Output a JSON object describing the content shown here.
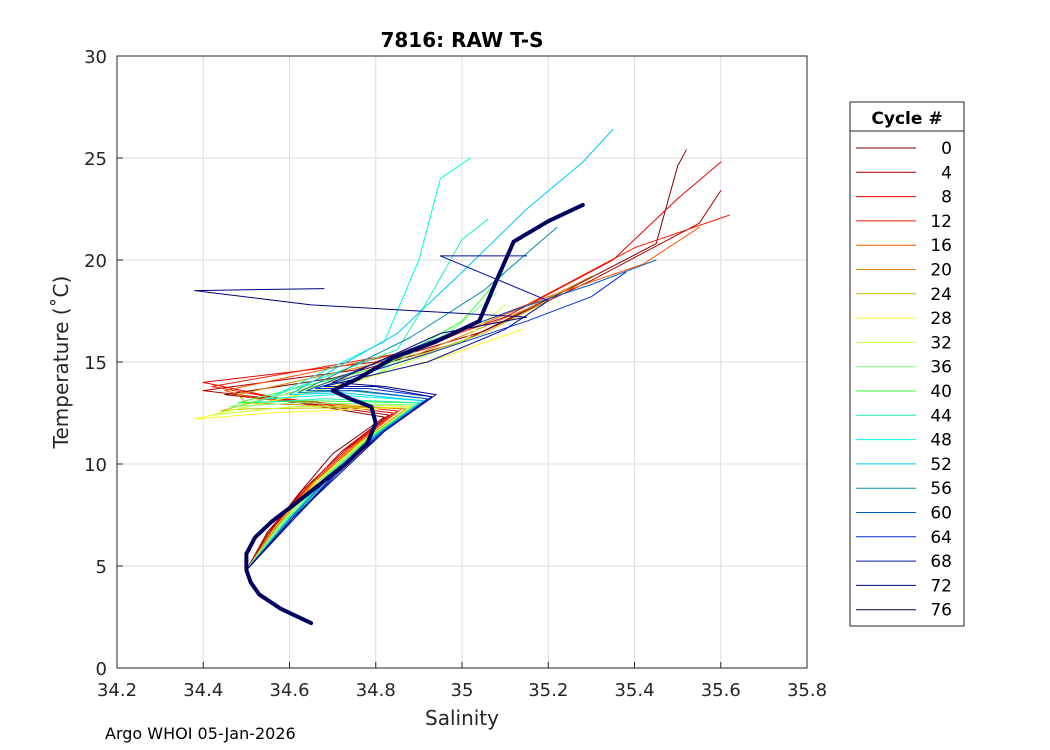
{
  "chart_data": {
    "type": "line",
    "title": "7816: RAW T-S",
    "xlabel": "Salinity",
    "ylabel": "Temperature (˚C)",
    "xlim": [
      34.2,
      35.8
    ],
    "ylim": [
      0,
      30
    ],
    "xticks": [
      "34.2",
      "34.4",
      "34.6",
      "34.8",
      "35",
      "35.2",
      "35.4",
      "35.6",
      "35.8"
    ],
    "xtick_values": [
      34.2,
      34.4,
      34.6,
      34.8,
      35.0,
      35.2,
      35.4,
      35.6,
      35.8
    ],
    "yticks": [
      "0",
      "5",
      "10",
      "15",
      "20",
      "25",
      "30"
    ],
    "ytick_values": [
      0,
      5,
      10,
      15,
      20,
      25,
      30
    ],
    "grid": true,
    "legend": {
      "title": "Cycle #",
      "placement": "right-outside",
      "entries": [
        {
          "label": "0",
          "color": "#7f0000"
        },
        {
          "label": "4",
          "color": "#b20000"
        },
        {
          "label": "8",
          "color": "#e00000"
        },
        {
          "label": "12",
          "color": "#ff1a00"
        },
        {
          "label": "16",
          "color": "#ff5500"
        },
        {
          "label": "20",
          "color": "#d98a00"
        },
        {
          "label": "24",
          "color": "#c8c000"
        },
        {
          "label": "28",
          "color": "#ffff20"
        },
        {
          "label": "32",
          "color": "#c8ff38"
        },
        {
          "label": "36",
          "color": "#7fff7f"
        },
        {
          "label": "40",
          "color": "#38ff38"
        },
        {
          "label": "44",
          "color": "#20f0b0"
        },
        {
          "label": "48",
          "color": "#00ffe0"
        },
        {
          "label": "52",
          "color": "#00c8ff"
        },
        {
          "label": "56",
          "color": "#0090a8"
        },
        {
          "label": "60",
          "color": "#0060c8"
        },
        {
          "label": "64",
          "color": "#0030e0"
        },
        {
          "label": "68",
          "color": "#0010a0"
        },
        {
          "label": "72",
          "color": "#00007f"
        },
        {
          "label": "76",
          "color": "#000060"
        }
      ]
    },
    "series": [
      {
        "name": "0",
        "color": "#7f0000",
        "points": [
          [
            34.5,
            4.8
          ],
          [
            34.55,
            6.6
          ],
          [
            34.62,
            8.5
          ],
          [
            34.7,
            10.5
          ],
          [
            34.82,
            12.3
          ],
          [
            34.62,
            13.0
          ],
          [
            34.45,
            13.4
          ],
          [
            34.7,
            14.2
          ],
          [
            35.0,
            16.0
          ],
          [
            35.25,
            18.6
          ],
          [
            35.45,
            20.8
          ],
          [
            35.5,
            24.6
          ],
          [
            35.52,
            25.4
          ]
        ]
      },
      {
        "name": "4",
        "color": "#b20000",
        "points": [
          [
            34.5,
            4.8
          ],
          [
            34.55,
            6.7
          ],
          [
            34.63,
            8.6
          ],
          [
            34.72,
            10.6
          ],
          [
            34.83,
            12.4
          ],
          [
            34.6,
            13.1
          ],
          [
            34.4,
            13.6
          ],
          [
            34.75,
            14.6
          ],
          [
            35.05,
            16.5
          ],
          [
            35.3,
            19.0
          ],
          [
            35.55,
            21.8
          ],
          [
            35.6,
            23.4
          ]
        ]
      },
      {
        "name": "8",
        "color": "#e00000",
        "points": [
          [
            34.5,
            4.8
          ],
          [
            34.56,
            6.8
          ],
          [
            34.63,
            8.7
          ],
          [
            34.73,
            10.7
          ],
          [
            34.84,
            12.5
          ],
          [
            34.58,
            13.2
          ],
          [
            34.4,
            14.0
          ],
          [
            34.8,
            15.0
          ],
          [
            35.1,
            17.2
          ],
          [
            35.35,
            20.0
          ],
          [
            35.5,
            23.0
          ],
          [
            35.6,
            24.8
          ]
        ]
      },
      {
        "name": "12",
        "color": "#ff1a00",
        "points": [
          [
            34.5,
            4.8
          ],
          [
            34.56,
            6.8
          ],
          [
            34.64,
            8.8
          ],
          [
            34.74,
            10.8
          ],
          [
            34.85,
            12.6
          ],
          [
            34.55,
            13.3
          ],
          [
            34.42,
            13.8
          ],
          [
            34.85,
            15.4
          ],
          [
            35.15,
            17.8
          ],
          [
            35.4,
            20.6
          ],
          [
            35.62,
            22.2
          ]
        ]
      },
      {
        "name": "16",
        "color": "#ff5500",
        "points": [
          [
            34.5,
            4.8
          ],
          [
            34.57,
            6.9
          ],
          [
            34.65,
            8.9
          ],
          [
            34.75,
            10.9
          ],
          [
            34.86,
            12.7
          ],
          [
            34.52,
            13.2
          ],
          [
            34.45,
            13.6
          ],
          [
            34.9,
            15.6
          ],
          [
            35.2,
            18.2
          ],
          [
            35.42,
            19.8
          ],
          [
            35.55,
            21.6
          ]
        ]
      },
      {
        "name": "20",
        "color": "#d98a00",
        "points": [
          [
            34.5,
            4.8
          ],
          [
            34.57,
            6.9
          ],
          [
            34.65,
            9.0
          ],
          [
            34.76,
            11.0
          ],
          [
            34.87,
            12.7
          ],
          [
            34.5,
            13.0
          ],
          [
            34.48,
            13.4
          ],
          [
            34.9,
            15.4
          ],
          [
            35.15,
            17.6
          ],
          [
            35.3,
            19.2
          ]
        ]
      },
      {
        "name": "24",
        "color": "#c8c000",
        "points": [
          [
            34.5,
            4.8
          ],
          [
            34.57,
            7.0
          ],
          [
            34.66,
            9.0
          ],
          [
            34.76,
            11.0
          ],
          [
            34.88,
            12.8
          ],
          [
            34.5,
            12.7
          ],
          [
            34.44,
            12.6
          ],
          [
            34.8,
            14.6
          ],
          [
            35.05,
            16.4
          ],
          [
            35.2,
            18.0
          ]
        ]
      },
      {
        "name": "28",
        "color": "#ffff20",
        "points": [
          [
            34.5,
            4.8
          ],
          [
            34.58,
            7.0
          ],
          [
            34.66,
            9.1
          ],
          [
            34.77,
            11.1
          ],
          [
            34.88,
            12.8
          ],
          [
            34.55,
            12.5
          ],
          [
            34.38,
            12.2
          ],
          [
            34.7,
            13.8
          ],
          [
            34.95,
            15.2
          ],
          [
            35.14,
            16.6
          ]
        ]
      },
      {
        "name": "32",
        "color": "#c8ff38",
        "points": [
          [
            34.5,
            4.8
          ],
          [
            34.58,
            7.0
          ],
          [
            34.67,
            9.1
          ],
          [
            34.77,
            11.1
          ],
          [
            34.89,
            12.9
          ],
          [
            34.6,
            12.8
          ],
          [
            34.42,
            12.4
          ],
          [
            34.75,
            14.0
          ],
          [
            35.0,
            16.0
          ],
          [
            35.1,
            17.8
          ]
        ]
      },
      {
        "name": "36",
        "color": "#7fff7f",
        "points": [
          [
            34.5,
            4.8
          ],
          [
            34.58,
            7.1
          ],
          [
            34.67,
            9.2
          ],
          [
            34.78,
            11.2
          ],
          [
            34.89,
            12.9
          ],
          [
            34.62,
            13.0
          ],
          [
            34.46,
            12.8
          ],
          [
            34.8,
            14.4
          ],
          [
            34.98,
            16.6
          ],
          [
            35.08,
            18.4
          ]
        ]
      },
      {
        "name": "40",
        "color": "#38ff38",
        "points": [
          [
            34.5,
            4.8
          ],
          [
            34.59,
            7.1
          ],
          [
            34.68,
            9.2
          ],
          [
            34.78,
            11.2
          ],
          [
            34.9,
            13.0
          ],
          [
            34.64,
            13.1
          ],
          [
            34.48,
            13.0
          ],
          [
            34.82,
            14.8
          ],
          [
            35.0,
            17.0
          ],
          [
            35.1,
            19.4
          ]
        ]
      },
      {
        "name": "44",
        "color": "#20f0b0",
        "points": [
          [
            34.5,
            4.8
          ],
          [
            34.59,
            7.1
          ],
          [
            34.68,
            9.3
          ],
          [
            34.79,
            11.3
          ],
          [
            34.9,
            13.0
          ],
          [
            34.68,
            13.2
          ],
          [
            34.52,
            13.0
          ],
          [
            34.85,
            15.6
          ],
          [
            34.92,
            18.0
          ],
          [
            35.0,
            21.0
          ],
          [
            35.06,
            22.0
          ]
        ]
      },
      {
        "name": "48",
        "color": "#00ffe0",
        "points": [
          [
            34.5,
            4.8
          ],
          [
            34.59,
            7.2
          ],
          [
            34.69,
            9.3
          ],
          [
            34.79,
            11.3
          ],
          [
            34.91,
            13.1
          ],
          [
            34.7,
            13.4
          ],
          [
            34.55,
            13.2
          ],
          [
            34.82,
            16.0
          ],
          [
            34.9,
            20.0
          ],
          [
            34.95,
            24.0
          ],
          [
            35.02,
            25.0
          ]
        ]
      },
      {
        "name": "52",
        "color": "#00c8ff",
        "points": [
          [
            34.5,
            4.8
          ],
          [
            34.6,
            7.2
          ],
          [
            34.69,
            9.4
          ],
          [
            34.8,
            11.4
          ],
          [
            34.91,
            13.1
          ],
          [
            34.72,
            13.5
          ],
          [
            34.6,
            13.4
          ],
          [
            34.85,
            16.4
          ],
          [
            35.0,
            19.4
          ],
          [
            35.15,
            22.5
          ],
          [
            35.28,
            24.8
          ],
          [
            35.35,
            26.4
          ]
        ]
      },
      {
        "name": "56",
        "color": "#0090a8",
        "points": [
          [
            34.5,
            4.8
          ],
          [
            34.6,
            7.2
          ],
          [
            34.7,
            9.4
          ],
          [
            34.8,
            11.4
          ],
          [
            34.92,
            13.2
          ],
          [
            34.74,
            13.6
          ],
          [
            34.62,
            13.5
          ],
          [
            34.88,
            16.2
          ],
          [
            35.05,
            18.5
          ],
          [
            35.22,
            21.6
          ]
        ]
      },
      {
        "name": "60",
        "color": "#0060c8",
        "points": [
          [
            34.5,
            4.8
          ],
          [
            34.6,
            7.3
          ],
          [
            34.7,
            9.5
          ],
          [
            34.81,
            11.5
          ],
          [
            34.92,
            13.2
          ],
          [
            34.76,
            13.6
          ],
          [
            34.64,
            13.6
          ],
          [
            34.9,
            15.8
          ],
          [
            35.1,
            17.4
          ],
          [
            35.3,
            18.8
          ],
          [
            35.45,
            20.0
          ]
        ]
      },
      {
        "name": "64",
        "color": "#0030e0",
        "points": [
          [
            34.5,
            4.8
          ],
          [
            34.61,
            7.3
          ],
          [
            34.71,
            9.5
          ],
          [
            34.81,
            11.5
          ],
          [
            34.93,
            13.3
          ],
          [
            34.78,
            13.7
          ],
          [
            34.66,
            13.7
          ],
          [
            34.92,
            15.4
          ],
          [
            35.15,
            17.0
          ],
          [
            35.3,
            18.2
          ],
          [
            35.38,
            19.4
          ]
        ]
      },
      {
        "name": "68",
        "color": "#0010a0",
        "points": [
          [
            34.5,
            4.8
          ],
          [
            34.61,
            7.3
          ],
          [
            34.71,
            9.6
          ],
          [
            34.82,
            11.6
          ],
          [
            34.93,
            13.3
          ],
          [
            34.8,
            13.8
          ],
          [
            34.68,
            13.8
          ],
          [
            34.92,
            15.0
          ],
          [
            35.1,
            16.6
          ],
          [
            35.2,
            18.0
          ],
          [
            34.95,
            20.2
          ],
          [
            35.15,
            20.2
          ]
        ]
      },
      {
        "name": "72",
        "color": "#00007f",
        "points": [
          [
            34.5,
            4.8
          ],
          [
            34.61,
            7.4
          ],
          [
            34.72,
            9.6
          ],
          [
            34.82,
            11.6
          ],
          [
            34.94,
            13.4
          ],
          [
            34.82,
            13.8
          ],
          [
            34.7,
            14.0
          ],
          [
            34.95,
            16.4
          ],
          [
            35.15,
            17.2
          ],
          [
            34.65,
            17.8
          ],
          [
            34.38,
            18.5
          ],
          [
            34.68,
            18.6
          ]
        ]
      },
      {
        "name": "76",
        "color": "#000060",
        "bold": true,
        "points": [
          [
            34.65,
            2.2
          ],
          [
            34.58,
            2.9
          ],
          [
            34.53,
            3.6
          ],
          [
            34.51,
            4.2
          ],
          [
            34.5,
            4.8
          ],
          [
            34.5,
            5.6
          ],
          [
            34.52,
            6.4
          ],
          [
            34.56,
            7.2
          ],
          [
            34.61,
            8.0
          ],
          [
            34.67,
            9.0
          ],
          [
            34.73,
            10.0
          ],
          [
            34.78,
            11.0
          ],
          [
            34.8,
            12.0
          ],
          [
            34.79,
            12.8
          ],
          [
            34.74,
            13.2
          ],
          [
            34.7,
            13.6
          ],
          [
            34.76,
            14.2
          ],
          [
            34.84,
            15.2
          ],
          [
            34.94,
            16.0
          ],
          [
            35.04,
            17.0
          ],
          [
            35.08,
            19.0
          ],
          [
            35.12,
            20.9
          ],
          [
            35.2,
            21.9
          ],
          [
            35.28,
            22.7
          ]
        ]
      }
    ]
  },
  "footer": "Argo WHOI 05-Jan-2026"
}
